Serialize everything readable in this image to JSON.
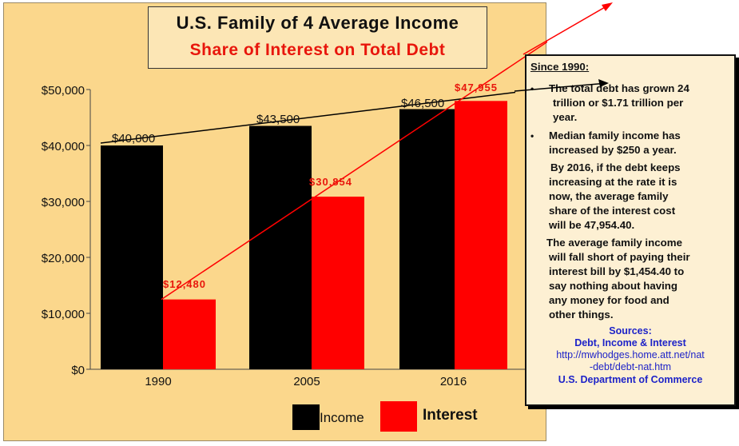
{
  "chart_data": {
    "type": "bar",
    "title": "U.S. Family of 4 Average Income",
    "subtitle": "Share of Interest on Total Debt",
    "categories": [
      "1990",
      "2005",
      "2016"
    ],
    "series": [
      {
        "name": "Income",
        "values": [
          40000,
          43500,
          46500
        ],
        "color": "#000000",
        "labels": [
          "$40,000",
          "$43,500",
          "$46,500"
        ]
      },
      {
        "name": "Interest",
        "values": [
          12480,
          30854,
          47955
        ],
        "color": "#ff0000",
        "labels": [
          "$12,480",
          "$30,854",
          "$47,955"
        ]
      }
    ],
    "ylim": [
      0,
      50000
    ],
    "yticks": [
      0,
      10000,
      20000,
      30000,
      40000,
      50000
    ],
    "ytick_labels": [
      "$0",
      "$10,000",
      "$20,000",
      "$30,000",
      "$40,000",
      "$50,000"
    ],
    "trend_lines": [
      "income",
      "interest"
    ],
    "legend": {
      "position": "bottom"
    }
  },
  "colors": {
    "panel": "#fbd78c",
    "income": "#000000",
    "interest": "#ff0000",
    "source": "#1e23c8"
  },
  "notes": {
    "heading": "Since 1990:",
    "bullet1_line1": "The total debt has grown 24",
    "bullet1_line2": "trillion or $1.71 trillion per",
    "bullet1_line3": "year.",
    "bullet2_line1": "Median family income has",
    "bullet2_line2": "increased by $250 a year.",
    "para1_line1": "By 2016, if the debt keeps",
    "para1_line2": "increasing at the rate it is",
    "para1_line3": "now, the average family",
    "para1_line4": "share of the interest cost",
    "para1_line5": "will be 47,954.40.",
    "para2_line1": "The average family income",
    "para2_line2": "will fall short of paying their",
    "para2_line3": "interest bill by $1,454.40 to",
    "para2_line4": "say nothing about having",
    "para2_line5": "any money for food and",
    "para2_line6": "other things.",
    "sources_heading": "Sources:",
    "source1": "Debt, Income & Interest",
    "url_line1": "http://mwhodges.home.att.net/nat",
    "url_line2": "-debt/debt-nat.htm",
    "source2": "U.S. Department of Commerce"
  }
}
